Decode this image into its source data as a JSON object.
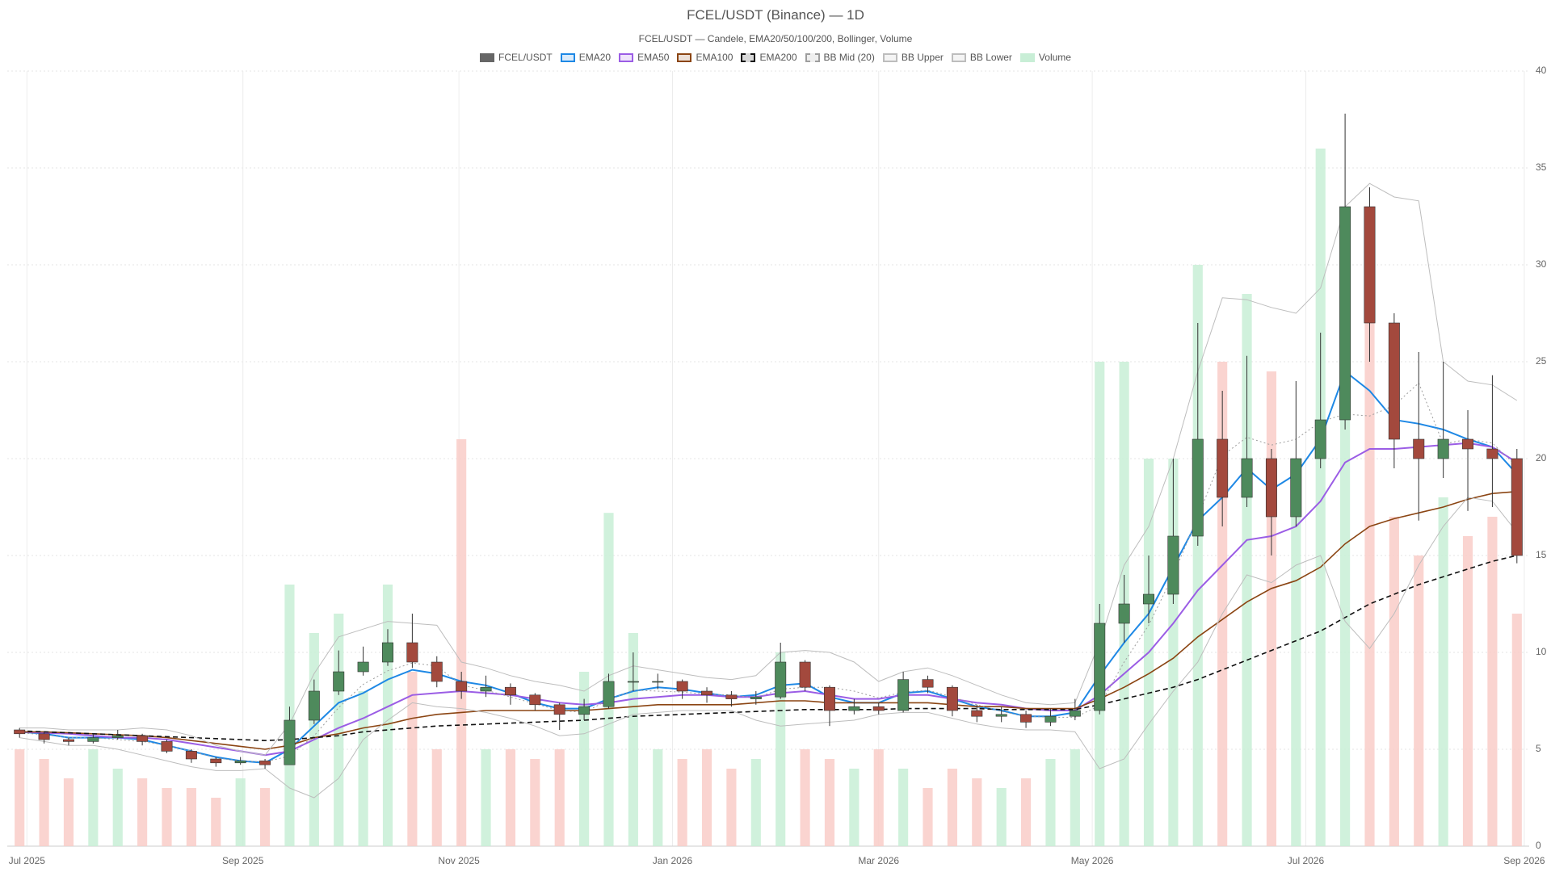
{
  "chart_data": {
    "type": "candlestick",
    "title": "FCEL/USDT (Binance) — 1D",
    "subtitle": "FCEL/USDT — Candele, EMA20/50/100/200, Bollinger, Volume",
    "legend": "top",
    "grid": true,
    "xlim": [
      -0.5,
      61.5
    ],
    "ylim": [
      0,
      40
    ],
    "yticks": [
      0,
      5,
      10,
      15,
      20,
      25,
      30,
      35,
      40
    ],
    "xticks": [
      {
        "value": 0.3,
        "label": "Jul 2025"
      },
      {
        "value": 9.1,
        "label": "Sep 2025"
      },
      {
        "value": 17.9,
        "label": "Nov 2025"
      },
      {
        "value": 26.6,
        "label": "Jan 2026"
      },
      {
        "value": 35,
        "label": "Mar 2026"
      },
      {
        "value": 43.7,
        "label": "May 2026"
      },
      {
        "value": 52.4,
        "label": "Jul 2026"
      },
      {
        "value": 61.3,
        "label": "Sep 2026"
      }
    ],
    "candles": {
      "name": "FCEL/USDT",
      "legend_color": "#666666",
      "up_color": "#4e8a5c",
      "down_color": "#a3493d",
      "open": [
        6.0,
        5.8,
        5.5,
        5.4,
        5.6,
        5.7,
        5.4,
        4.9,
        4.5,
        4.3,
        4.4,
        4.2,
        6.5,
        8.0,
        9.0,
        9.5,
        10.5,
        9.5,
        8.5,
        8.0,
        8.2,
        7.8,
        7.3,
        6.8,
        7.2,
        8.5,
        8.5,
        8.5,
        8.0,
        7.8,
        7.6,
        7.7,
        9.5,
        8.2,
        7.0,
        7.2,
        7.0,
        8.6,
        8.2,
        7.0,
        6.7,
        6.8,
        6.4,
        6.7,
        7.0,
        11.5,
        12.5,
        13.0,
        16.0,
        21.0,
        18.0,
        20.0,
        17.0,
        20.0,
        22.0,
        33.0,
        27.0,
        21.0,
        20.0,
        21.0,
        20.5,
        20.0
      ],
      "high": [
        6.1,
        5.9,
        5.6,
        5.8,
        6.0,
        5.8,
        5.5,
        5.0,
        4.6,
        4.6,
        4.5,
        7.2,
        8.6,
        10.1,
        10.3,
        11.2,
        12.0,
        9.8,
        9.0,
        8.8,
        8.4,
        7.9,
        7.4,
        7.6,
        8.9,
        10.0,
        8.9,
        8.6,
        8.2,
        8.0,
        8.0,
        10.5,
        9.6,
        8.3,
        7.6,
        7.4,
        9.0,
        8.8,
        8.3,
        7.3,
        7.2,
        7.0,
        7.1,
        7.6,
        12.5,
        14.0,
        15.0,
        20.0,
        27.0,
        23.5,
        25.3,
        20.5,
        24.0,
        26.5,
        37.8,
        34.0,
        27.5,
        25.5,
        25.0,
        22.5,
        24.3,
        20.5
      ],
      "low": [
        5.6,
        5.3,
        5.2,
        5.3,
        5.5,
        5.2,
        4.8,
        4.3,
        4.1,
        4.2,
        4.0,
        4.2,
        6.3,
        7.8,
        8.8,
        9.3,
        9.2,
        8.2,
        7.6,
        7.7,
        7.3,
        7.0,
        6.0,
        6.5,
        7.1,
        8.0,
        8.1,
        7.6,
        7.4,
        7.2,
        7.3,
        7.6,
        8.0,
        6.2,
        6.8,
        6.8,
        6.9,
        7.9,
        6.7,
        6.4,
        6.4,
        6.1,
        6.2,
        6.5,
        6.8,
        10.5,
        11.5,
        12.5,
        15.5,
        16.5,
        17.5,
        15.0,
        16.5,
        19.5,
        21.5,
        25.0,
        19.5,
        16.8,
        19.0,
        17.3,
        17.5,
        14.6
      ],
      "close": [
        5.8,
        5.5,
        5.4,
        5.6,
        5.7,
        5.4,
        4.9,
        4.5,
        4.3,
        4.4,
        4.2,
        6.5,
        8.0,
        9.0,
        9.5,
        10.5,
        9.5,
        8.5,
        8.0,
        8.2,
        7.8,
        7.3,
        6.8,
        7.2,
        8.5,
        8.5,
        8.5,
        8.0,
        7.8,
        7.6,
        7.7,
        9.5,
        8.2,
        7.0,
        7.2,
        7.0,
        8.6,
        8.2,
        7.0,
        6.7,
        6.8,
        6.4,
        6.7,
        7.0,
        11.5,
        12.5,
        13.0,
        16.0,
        21.0,
        18.0,
        20.0,
        17.0,
        20.0,
        22.0,
        33.0,
        27.0,
        21.0,
        20.0,
        21.0,
        20.5,
        20.0,
        15.0
      ]
    },
    "volume": {
      "name": "Volume",
      "up_color": "#c8eed6",
      "down_color": "#f9cdc8",
      "values": [
        5,
        4.5,
        3.5,
        5,
        4,
        3.5,
        3,
        3,
        2.5,
        3.5,
        3,
        13.5,
        11,
        12,
        8,
        13.5,
        9,
        5,
        21,
        5,
        5,
        4.5,
        5,
        9,
        17.2,
        11,
        5,
        4.5,
        5,
        4,
        4.5,
        10,
        5,
        4.5,
        4,
        5,
        4,
        3,
        4,
        3.5,
        3,
        3.5,
        4.5,
        5,
        25,
        25,
        20,
        20,
        30,
        25,
        28.5,
        24.5,
        19,
        36,
        33,
        29,
        17,
        15,
        18,
        16,
        17,
        12
      ]
    },
    "series": [
      {
        "name": "EMA20",
        "color": "#1e88e5",
        "width": 2,
        "values": [
          5.9,
          5.8,
          5.6,
          5.6,
          5.6,
          5.5,
          5.2,
          4.9,
          4.6,
          4.4,
          4.3,
          5.0,
          6.2,
          7.4,
          7.9,
          8.6,
          9.1,
          8.9,
          8.5,
          8.3,
          7.9,
          7.4,
          7.1,
          7.1,
          7.6,
          8.0,
          8.2,
          8.1,
          7.9,
          7.7,
          7.8,
          8.3,
          8.4,
          7.7,
          7.4,
          7.4,
          7.9,
          8.0,
          7.6,
          7.2,
          7.0,
          6.7,
          6.7,
          6.9,
          8.8,
          10.5,
          12.0,
          14.4,
          16.8,
          18.0,
          19.5,
          18.4,
          19.2,
          21.0,
          24.5,
          23.5,
          22.0,
          21.8,
          21.5,
          21.0,
          20.6,
          19.2
        ]
      },
      {
        "name": "EMA50",
        "color": "#9b5de5",
        "width": 2,
        "values": [
          5.9,
          5.85,
          5.8,
          5.7,
          5.6,
          5.6,
          5.5,
          5.3,
          5.1,
          4.9,
          4.7,
          4.9,
          5.5,
          6.1,
          6.6,
          7.2,
          7.8,
          7.9,
          8.0,
          7.9,
          7.8,
          7.6,
          7.4,
          7.3,
          7.4,
          7.6,
          7.7,
          7.8,
          7.8,
          7.7,
          7.7,
          7.9,
          8.0,
          7.8,
          7.6,
          7.6,
          7.8,
          7.8,
          7.6,
          7.4,
          7.3,
          7.1,
          7.0,
          7.0,
          7.8,
          8.9,
          10.0,
          11.5,
          13.2,
          14.5,
          15.8,
          16.0,
          16.5,
          17.8,
          19.8,
          20.5,
          20.5,
          20.6,
          20.7,
          20.8,
          20.6,
          19.8
        ]
      },
      {
        "name": "EMA100",
        "color": "#8b4513",
        "width": 1.6,
        "values": [
          5.9,
          5.9,
          5.85,
          5.8,
          5.75,
          5.7,
          5.6,
          5.45,
          5.3,
          5.15,
          5.0,
          5.2,
          5.6,
          5.8,
          6.1,
          6.3,
          6.6,
          6.8,
          6.9,
          7.0,
          7.0,
          7.0,
          7.0,
          7.0,
          7.1,
          7.2,
          7.3,
          7.3,
          7.3,
          7.3,
          7.4,
          7.5,
          7.5,
          7.4,
          7.4,
          7.4,
          7.4,
          7.4,
          7.3,
          7.2,
          7.2,
          7.1,
          7.1,
          7.1,
          7.6,
          8.2,
          8.9,
          9.7,
          10.8,
          11.7,
          12.6,
          13.3,
          13.7,
          14.4,
          15.6,
          16.5,
          16.9,
          17.2,
          17.5,
          17.9,
          18.2,
          18.3
        ]
      },
      {
        "name": "EMA200",
        "color": "#111111",
        "width": 1.6,
        "dash": "6,4",
        "values": [
          5.95,
          5.9,
          5.85,
          5.8,
          5.75,
          5.7,
          5.65,
          5.6,
          5.55,
          5.5,
          5.45,
          5.5,
          5.6,
          5.7,
          5.9,
          6.0,
          6.1,
          6.2,
          6.25,
          6.3,
          6.35,
          6.4,
          6.45,
          6.5,
          6.6,
          6.7,
          6.75,
          6.8,
          6.85,
          6.9,
          6.95,
          7.0,
          7.05,
          7.05,
          7.05,
          7.05,
          7.1,
          7.1,
          7.1,
          7.1,
          7.05,
          7.05,
          7.05,
          7.05,
          7.3,
          7.6,
          7.9,
          8.2,
          8.6,
          9.1,
          9.6,
          10.1,
          10.6,
          11.1,
          11.8,
          12.5,
          13.0,
          13.5,
          13.9,
          14.3,
          14.7,
          15.0
        ]
      },
      {
        "name": "BB Mid (20)",
        "color": "#9e9e9e",
        "width": 1,
        "dash": "2,3",
        "values": [
          5.85,
          5.75,
          5.6,
          5.6,
          5.5,
          5.4,
          5.2,
          4.9,
          4.55,
          4.4,
          4.35,
          4.65,
          5.7,
          7.15,
          8.35,
          9.05,
          9.45,
          9.3,
          8.3,
          8.05,
          7.7,
          7.35,
          7.0,
          6.9,
          7.55,
          8.05,
          8.0,
          7.95,
          7.85,
          7.8,
          7.65,
          8.1,
          8.2,
          8.2,
          8.0,
          7.65,
          7.95,
          8.05,
          7.7,
          7.3,
          6.95,
          6.7,
          6.65,
          6.65,
          7.25,
          9.5,
          11.4,
          14.0,
          17.0,
          20.15,
          21.1,
          20.7,
          21.0,
          21.9,
          22.3,
          22.2,
          22.75,
          23.9,
          20.75,
          21.0,
          20.8,
          19.6
        ]
      },
      {
        "name": "BB Upper",
        "color": "#bdbdbd",
        "width": 1,
        "values": [
          6.1,
          6.1,
          6.0,
          6.0,
          6.0,
          6.1,
          6.0,
          5.7,
          5.2,
          4.9,
          4.7,
          6.3,
          8.9,
          10.8,
          11.2,
          11.6,
          11.5,
          11.4,
          9.5,
          9.2,
          8.8,
          8.5,
          8.3,
          8.0,
          8.8,
          9.3,
          9.1,
          8.9,
          8.7,
          8.6,
          8.8,
          10.0,
          10.1,
          10.0,
          9.5,
          8.5,
          9.0,
          9.2,
          8.8,
          8.3,
          7.8,
          7.4,
          7.3,
          7.4,
          10.5,
          14.5,
          16.5,
          20.0,
          24.5,
          28.3,
          28.2,
          27.8,
          27.5,
          28.8,
          33.0,
          34.2,
          33.5,
          33.3,
          25.0,
          24.0,
          23.8,
          23.0
        ]
      },
      {
        "name": "BB Lower",
        "color": "#bdbdbd",
        "width": 1,
        "values": [
          5.6,
          5.4,
          5.2,
          5.2,
          5.0,
          4.7,
          4.4,
          4.1,
          3.9,
          3.9,
          4.0,
          3.0,
          2.5,
          3.5,
          5.5,
          6.5,
          7.4,
          7.2,
          7.1,
          6.9,
          6.6,
          6.2,
          5.7,
          5.8,
          6.3,
          6.8,
          6.9,
          7.0,
          7.0,
          7.0,
          6.5,
          6.2,
          6.3,
          6.4,
          6.5,
          6.8,
          6.9,
          6.9,
          6.6,
          6.3,
          6.1,
          6.0,
          6.0,
          5.9,
          4.0,
          4.5,
          6.3,
          8.0,
          9.5,
          12.0,
          14.0,
          13.6,
          14.5,
          15.0,
          11.6,
          10.2,
          12.0,
          14.5,
          16.5,
          18.0,
          17.8,
          16.2
        ]
      }
    ]
  }
}
